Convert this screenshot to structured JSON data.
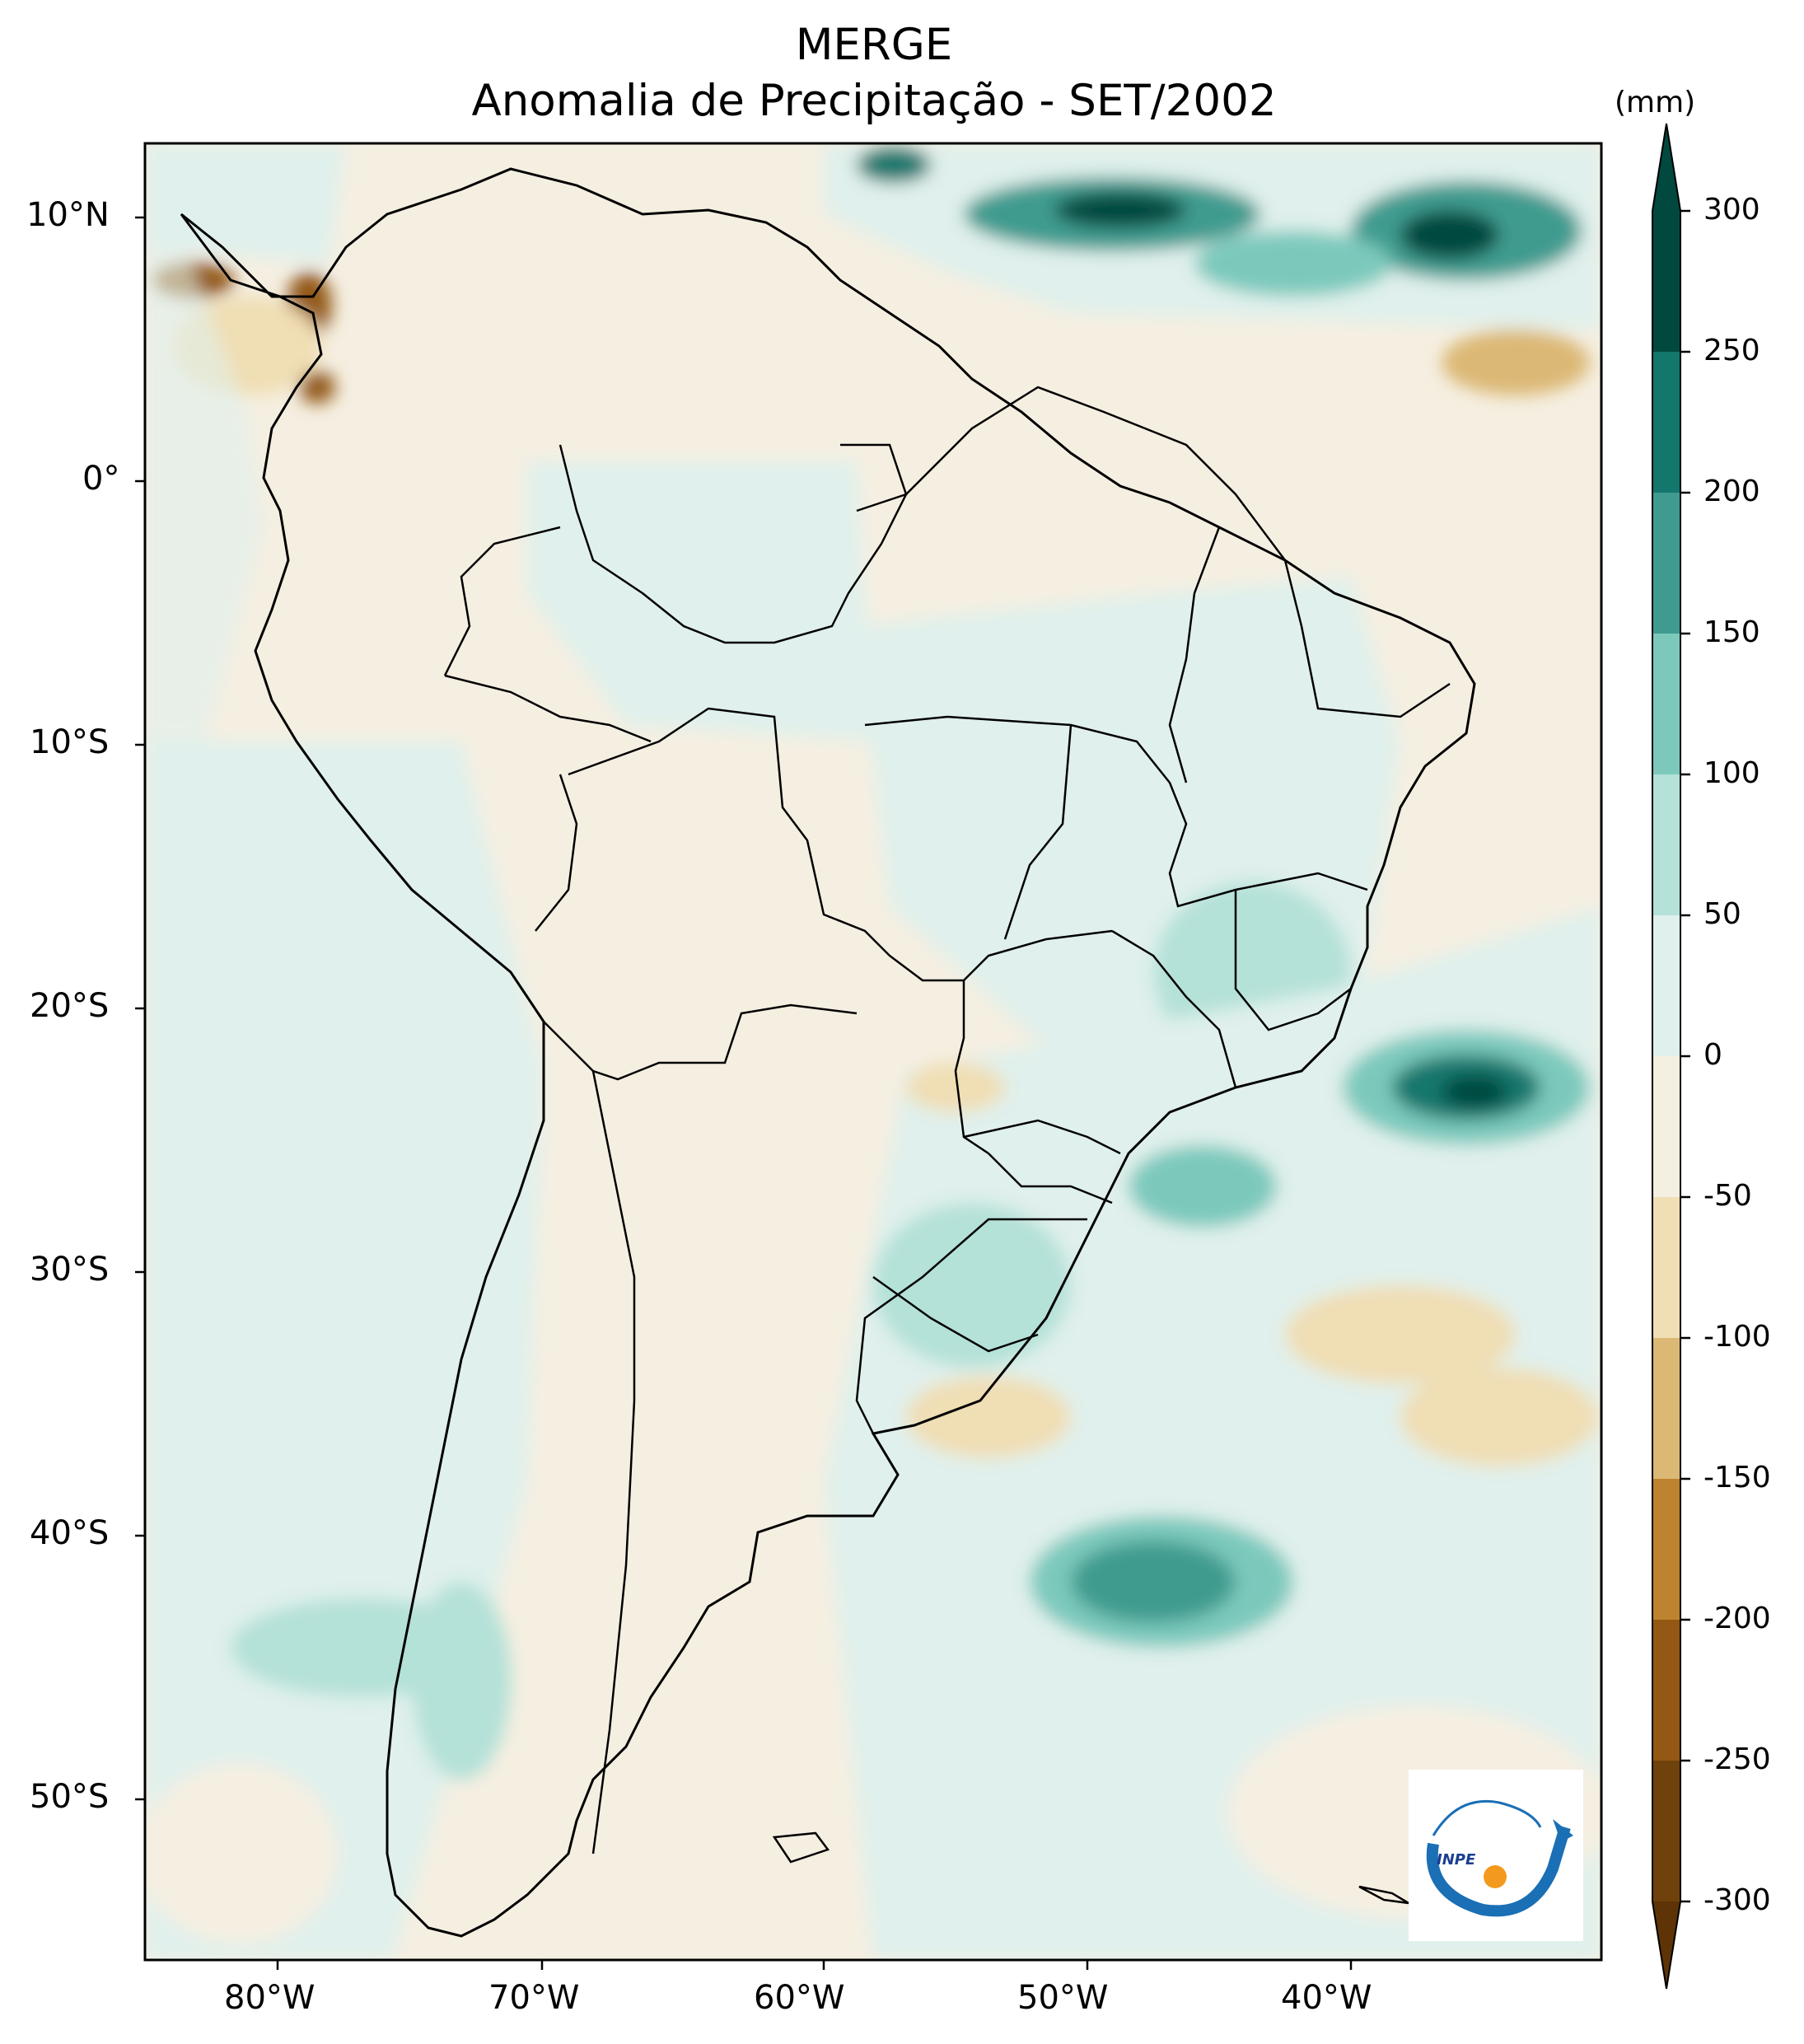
{
  "title": "MERGE",
  "subtitle": "Anomalia de Precipitação - SET/2002",
  "lat_labels": [
    "10°N",
    "0°",
    "10°S",
    "20°S",
    "30°S",
    "40°S",
    "50°S"
  ],
  "lon_labels": [
    "80°W",
    "70°W",
    "60°W",
    "50°W",
    "40°W"
  ],
  "colorbar": {
    "unit": "(mm)",
    "ticks": [
      "300",
      "250",
      "200",
      "150",
      "100",
      "50",
      "0",
      "-50",
      "-100",
      "-150",
      "-200",
      "-250",
      "-300"
    ],
    "colors": [
      "#01493f",
      "#13776d",
      "#3f9b8f",
      "#7cc9bc",
      "#b4e1d8",
      "#e0f0ec",
      "#f5efe1",
      "#f0deb4",
      "#dbb874",
      "#be832e",
      "#935813",
      "#6f410b"
    ],
    "extend": "both"
  },
  "map_extent": {
    "lon_min": -85,
    "lon_max": -30,
    "lat_min": -56,
    "lat_max": 13
  },
  "logo_text": "INPE"
}
